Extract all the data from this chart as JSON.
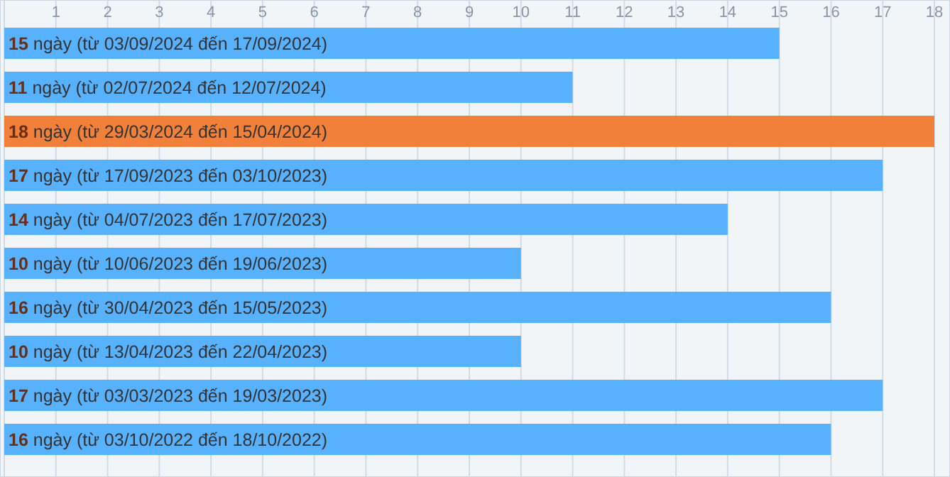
{
  "chart_data": {
    "type": "bar",
    "orientation": "horizontal",
    "categories": [
      "ngày (từ 03/09/2024 đến 17/09/2024)",
      "ngày (từ 02/07/2024 đến 12/07/2024)",
      "ngày (từ 29/03/2024 đến 15/04/2024)",
      "ngày (từ 17/09/2023 đến 03/10/2023)",
      "ngày (từ 04/07/2023 đến 17/07/2023)",
      "ngày (từ 10/06/2023 đến 19/06/2023)",
      "ngày (từ 30/04/2023 đến 15/05/2023)",
      "ngày (từ 13/04/2023 đến 22/04/2023)",
      "ngày (từ 03/03/2023 đến 19/03/2023)",
      "ngày (từ 03/10/2022 đến 18/10/2022)"
    ],
    "values": [
      15,
      11,
      18,
      17,
      14,
      10,
      16,
      10,
      17,
      16
    ],
    "colors": [
      "#58b1fc",
      "#58b1fc",
      "#f0803a",
      "#58b1fc",
      "#58b1fc",
      "#58b1fc",
      "#58b1fc",
      "#58b1fc",
      "#58b1fc",
      "#58b1fc"
    ],
    "xlim": [
      0,
      18
    ],
    "xticks": [
      {
        "value": 0,
        "label": null
      },
      1,
      2,
      3,
      4,
      5,
      6,
      7,
      8,
      9,
      10,
      11,
      12,
      13,
      14,
      15,
      16,
      17,
      18
    ],
    "grid": "x",
    "data_labels": true
  }
}
